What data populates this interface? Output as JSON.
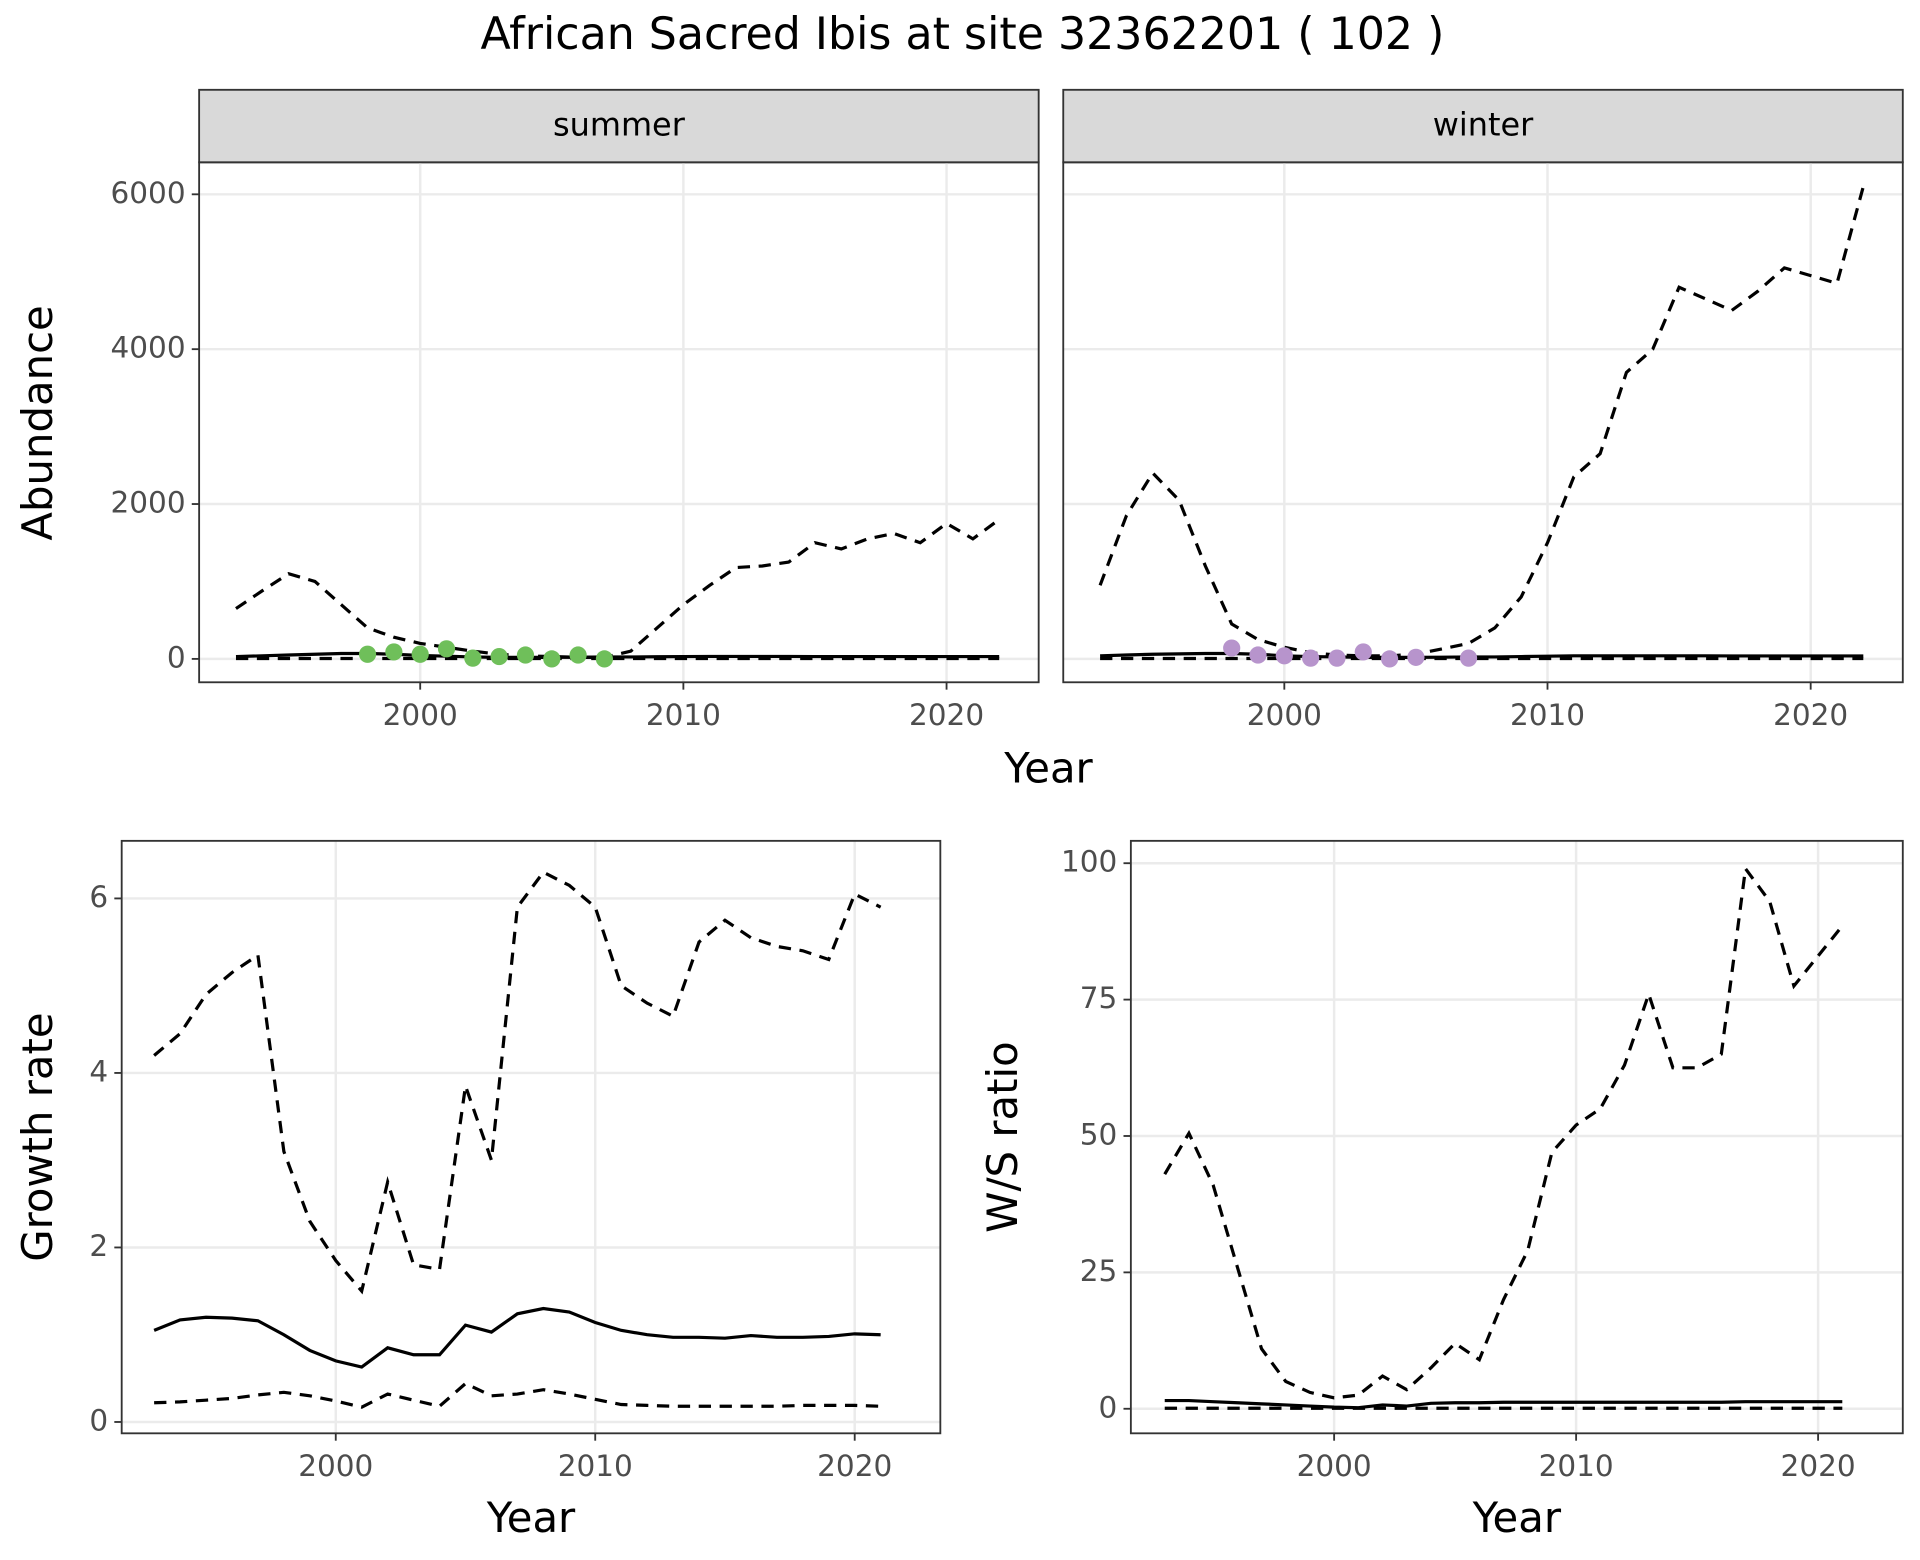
{
  "chart_data": [
    {
      "type": "line",
      "title": "African Sacred Ibis at site 32362201 ( 102 )",
      "xlabel": "Year",
      "ylabel": "Abundance",
      "x": [
        1993,
        1994,
        1995,
        1996,
        1997,
        1998,
        1999,
        2000,
        2001,
        2002,
        2003,
        2004,
        2005,
        2006,
        2007,
        2008,
        2009,
        2010,
        2011,
        2012,
        2013,
        2014,
        2015,
        2016,
        2017,
        2018,
        2019,
        2020,
        2021,
        2022
      ],
      "xlim": [
        1991.6,
        2023.5
      ],
      "xticks": [
        2000,
        2010,
        2020
      ],
      "ylim": [
        -302,
        6413
      ],
      "yticks": [
        0,
        2000,
        4000,
        6000
      ],
      "grid": true,
      "facets": [
        {
          "label": "summer",
          "series": [
            {
              "style": "dashed",
              "color": "#000000",
              "values": [
                650,
                880,
                1100,
                1000,
                700,
                400,
                280,
                200,
                150,
                100,
                60,
                40,
                30,
                20,
                20,
                100,
                400,
                700,
                950,
                1180,
                1200,
                1250,
                1500,
                1420,
                1550,
                1620,
                1500,
                1750,
                1550,
                1800
              ]
            },
            {
              "style": "solid",
              "color": "#000000",
              "values": [
                30,
                40,
                50,
                60,
                70,
                70,
                60,
                45,
                35,
                25,
                20,
                20,
                20,
                22,
                25,
                25,
                28,
                30,
                32,
                32,
                32,
                32,
                30,
                30,
                30,
                30,
                30,
                30,
                30,
                30
              ]
            },
            {
              "style": "dashed",
              "color": "#000000",
              "values": [
                5,
                5,
                5,
                5,
                5,
                5,
                5,
                5,
                5,
                5,
                5,
                5,
                5,
                5,
                5,
                5,
                5,
                5,
                5,
                5,
                5,
                5,
                5,
                5,
                5,
                5,
                5,
                5,
                5,
                5
              ]
            }
          ],
          "points": {
            "color": "#6fbf5a",
            "x": [
              1998,
              1999,
              2000,
              2001,
              2002,
              2003,
              2004,
              2005,
              2006,
              2007
            ],
            "values": [
              60,
              90,
              60,
              130,
              10,
              30,
              50,
              0,
              50,
              0
            ]
          }
        },
        {
          "label": "winter",
          "series": [
            {
              "style": "dashed",
              "color": "#000000",
              "values": [
                950,
                1850,
                2400,
                2050,
                1200,
                450,
                250,
                150,
                80,
                50,
                40,
                40,
                60,
                130,
                200,
                400,
                800,
                1500,
                2350,
                2650,
                3700,
                4000,
                4800,
                4650,
                4500,
                4750,
                5050,
                4950,
                4850,
                6100
              ]
            },
            {
              "style": "solid",
              "color": "#000000",
              "values": [
                40,
                50,
                60,
                65,
                70,
                70,
                60,
                40,
                30,
                25,
                20,
                20,
                20,
                22,
                25,
                25,
                30,
                35,
                40,
                40,
                40,
                40,
                40,
                40,
                38,
                38,
                38,
                38,
                38,
                38
              ]
            },
            {
              "style": "dashed",
              "color": "#000000",
              "values": [
                5,
                5,
                5,
                5,
                5,
                5,
                5,
                5,
                5,
                5,
                5,
                5,
                5,
                5,
                5,
                5,
                5,
                5,
                5,
                5,
                5,
                5,
                5,
                5,
                5,
                5,
                5,
                5,
                5,
                5
              ]
            }
          ],
          "points": {
            "color": "#b794cc",
            "x": [
              1998,
              1999,
              2000,
              2001,
              2002,
              2003,
              2004,
              2005,
              2007
            ],
            "values": [
              140,
              50,
              40,
              10,
              10,
              90,
              0,
              20,
              10
            ]
          }
        }
      ]
    },
    {
      "type": "line",
      "xlabel": "Year",
      "ylabel": "Growth rate",
      "x": [
        1993,
        1994,
        1995,
        1996,
        1997,
        1998,
        1999,
        2000,
        2001,
        2002,
        2003,
        2004,
        2005,
        2006,
        2007,
        2008,
        2009,
        2010,
        2011,
        2012,
        2013,
        2014,
        2015,
        2016,
        2017,
        2018,
        2019,
        2020,
        2021
      ],
      "xlim": [
        1991.75,
        2023.3
      ],
      "xticks": [
        2000,
        2010,
        2020
      ],
      "ylim": [
        -0.13,
        6.66
      ],
      "yticks": [
        0,
        2,
        4,
        6
      ],
      "grid": true,
      "series": [
        {
          "style": "dashed",
          "color": "#000000",
          "values": [
            4.2,
            4.45,
            4.9,
            5.15,
            5.35,
            3.1,
            2.3,
            1.85,
            1.5,
            2.75,
            1.8,
            1.75,
            3.85,
            3.0,
            5.9,
            6.3,
            6.15,
            5.9,
            5.0,
            4.8,
            4.65,
            5.5,
            5.75,
            5.55,
            5.45,
            5.4,
            5.3,
            6.05,
            5.9
          ]
        },
        {
          "style": "solid",
          "color": "#000000",
          "values": [
            1.05,
            1.17,
            1.2,
            1.19,
            1.16,
            1.0,
            0.82,
            0.7,
            0.63,
            0.85,
            0.77,
            0.77,
            1.11,
            1.03,
            1.24,
            1.3,
            1.26,
            1.14,
            1.05,
            1.0,
            0.97,
            0.97,
            0.96,
            0.99,
            0.97,
            0.97,
            0.98,
            1.01,
            1.0
          ]
        },
        {
          "style": "dashed",
          "color": "#000000",
          "values": [
            0.22,
            0.23,
            0.25,
            0.27,
            0.31,
            0.34,
            0.3,
            0.24,
            0.17,
            0.32,
            0.25,
            0.18,
            0.44,
            0.3,
            0.32,
            0.37,
            0.32,
            0.26,
            0.2,
            0.19,
            0.18,
            0.18,
            0.18,
            0.18,
            0.18,
            0.19,
            0.19,
            0.19,
            0.18
          ]
        }
      ]
    },
    {
      "type": "line",
      "xlabel": "Year",
      "ylabel": "W/S ratio",
      "x": [
        1993,
        1994,
        1995,
        1996,
        1997,
        1998,
        1999,
        2000,
        2001,
        2002,
        2003,
        2004,
        2005,
        2006,
        2007,
        2008,
        2009,
        2010,
        2011,
        2012,
        2013,
        2014,
        2015,
        2016,
        2017,
        2018,
        2019,
        2020,
        2021
      ],
      "xlim": [
        1991.6,
        2023.5
      ],
      "xticks": [
        2000,
        2010,
        2020
      ],
      "ylim": [
        -4.5,
        104.1
      ],
      "yticks": [
        0,
        25,
        50,
        75,
        100
      ],
      "grid": true,
      "series": [
        {
          "style": "dashed",
          "color": "#000000",
          "values": [
            43,
            50.5,
            41,
            26,
            11,
            5,
            3,
            2,
            2.5,
            6,
            3.5,
            7.5,
            12,
            9,
            20,
            29,
            47,
            52,
            55,
            63,
            76,
            62.5,
            62.5,
            65,
            99,
            93,
            77.5,
            83,
            88.5
          ]
        },
        {
          "style": "solid",
          "color": "#000000",
          "values": [
            1.5,
            1.5,
            1.3,
            1.1,
            0.9,
            0.7,
            0.5,
            0.3,
            0.2,
            0.7,
            0.5,
            1.0,
            1.1,
            1.1,
            1.2,
            1.2,
            1.2,
            1.2,
            1.2,
            1.2,
            1.2,
            1.2,
            1.2,
            1.2,
            1.3,
            1.3,
            1.3,
            1.3,
            1.3
          ]
        },
        {
          "style": "dashed",
          "color": "#000000",
          "values": [
            0.1,
            0.1,
            0.1,
            0.1,
            0.1,
            0.1,
            0.1,
            0.1,
            0.1,
            0.1,
            0.1,
            0.1,
            0.1,
            0.1,
            0.1,
            0.1,
            0.1,
            0.1,
            0.1,
            0.1,
            0.1,
            0.1,
            0.1,
            0.1,
            0.1,
            0.1,
            0.1,
            0.1,
            0.1
          ]
        }
      ]
    }
  ]
}
